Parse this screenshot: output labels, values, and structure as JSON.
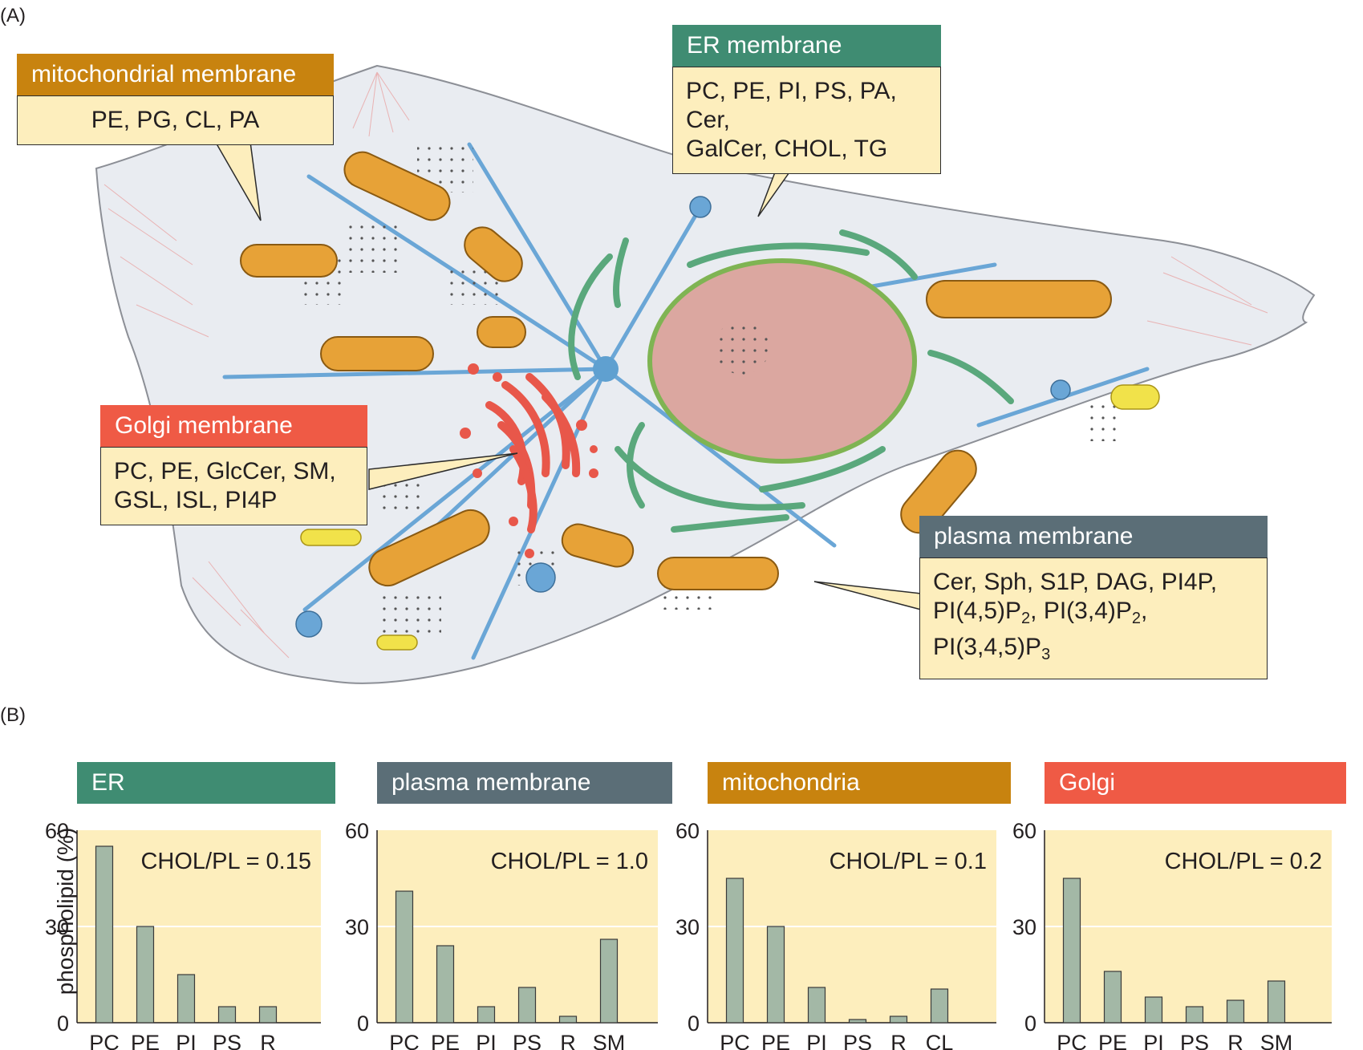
{
  "panel_a_label": "(A)",
  "panel_b_label": "(B)",
  "callouts": {
    "mitochondrial": {
      "title": "mitochondrial membrane",
      "lines": [
        "PE, PG, CL, PA"
      ]
    },
    "er": {
      "title": "ER membrane",
      "lines": [
        "PC, PE, PI, PS, PA, Cer,",
        "GalCer, CHOL, TG"
      ]
    },
    "golgi": {
      "title": "Golgi membrane",
      "lines": [
        "PC, PE, GlcCer, SM,",
        "GSL, ISL, PI4P"
      ]
    },
    "plasma": {
      "title": "plasma membrane",
      "line1": "Cer, Sph, S1P, DAG, PI4P,",
      "line2_parts": [
        "PI(4,5)P",
        "2",
        ", PI(3,4)P",
        "2",
        ", PI(3,4,5)P",
        "3"
      ]
    }
  },
  "colors": {
    "er": "#3f8c72",
    "plasma": "#5b6e77",
    "mito": "#c8830f",
    "golgi": "#ef5a45",
    "chart_bg": "#fdeebd",
    "bar": "#a3b8a6"
  },
  "ylabel": "phospholipid (%)",
  "chart_data": [
    {
      "type": "bar",
      "title": "ER",
      "annotation": "CHOL/PL = 0.15",
      "categories": [
        "PC",
        "PE",
        "PI",
        "PS",
        "R"
      ],
      "values": [
        55,
        30,
        15,
        5,
        5
      ],
      "ylabel": "phospholipid (%)",
      "ylim": [
        0,
        60
      ],
      "yticks": [
        0,
        30,
        60
      ]
    },
    {
      "type": "bar",
      "title": "plasma membrane",
      "annotation": "CHOL/PL = 1.0",
      "categories": [
        "PC",
        "PE",
        "PI",
        "PS",
        "R",
        "SM"
      ],
      "values": [
        41,
        24,
        5,
        11,
        2,
        26
      ],
      "ylim": [
        0,
        60
      ],
      "yticks": [
        0,
        30,
        60
      ]
    },
    {
      "type": "bar",
      "title": "mitochondria",
      "annotation": "CHOL/PL = 0.1",
      "categories": [
        "PC",
        "PE",
        "PI",
        "PS",
        "R",
        "CL"
      ],
      "values": [
        45,
        30,
        11,
        1,
        2,
        10.5
      ],
      "ylim": [
        0,
        60
      ],
      "yticks": [
        0,
        30,
        60
      ]
    },
    {
      "type": "bar",
      "title": "Golgi",
      "annotation": "CHOL/PL = 0.2",
      "categories": [
        "PC",
        "PE",
        "PI",
        "PS",
        "R",
        "SM"
      ],
      "values": [
        45,
        16,
        8,
        5,
        7,
        13
      ],
      "ylim": [
        0,
        60
      ],
      "yticks": [
        0,
        30,
        60
      ]
    }
  ]
}
